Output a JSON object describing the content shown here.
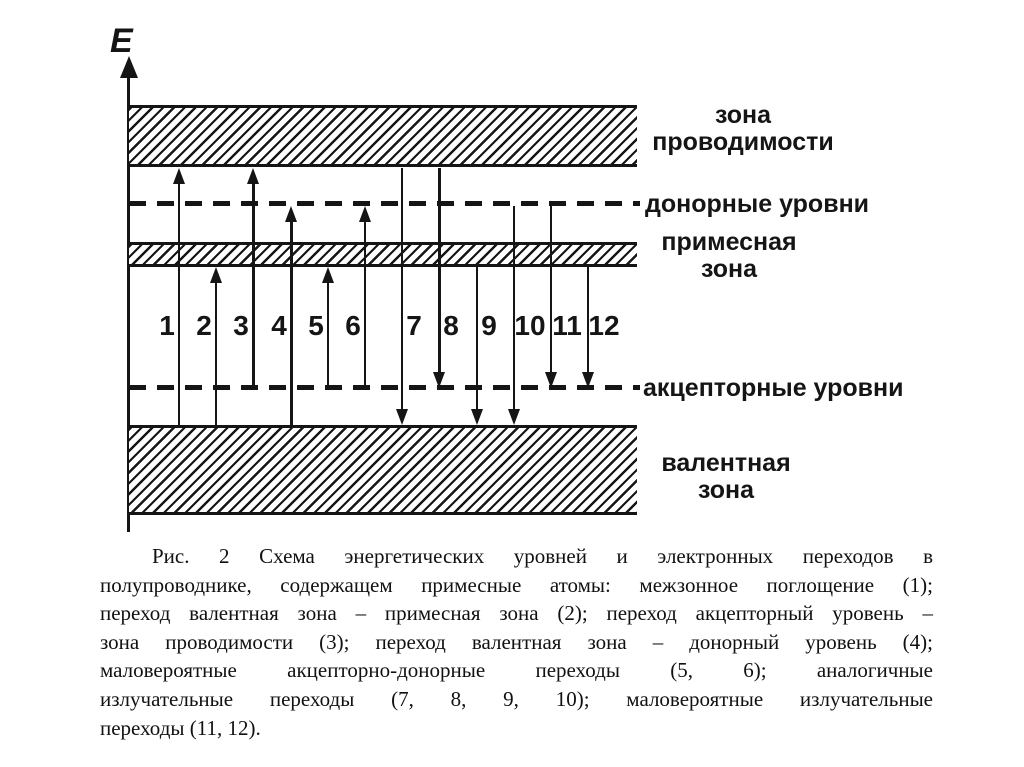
{
  "figure": {
    "axis_label": "E",
    "bands": [
      {
        "id": "conduction",
        "label_lines": [
          "зона",
          "проводимости"
        ]
      },
      {
        "id": "impurity",
        "label_lines": [
          "примесная",
          "зона"
        ]
      },
      {
        "id": "valence",
        "label_lines": [
          "валентная",
          "зона"
        ]
      }
    ],
    "levels": [
      {
        "id": "donor",
        "label": "донорные уровни"
      },
      {
        "id": "acceptor",
        "label": "акцепторные уровни"
      }
    ],
    "transitions": [
      {
        "n": "1",
        "from": "valence",
        "to": "conduction",
        "direction": "up"
      },
      {
        "n": "2",
        "from": "valence",
        "to": "impurity",
        "direction": "up"
      },
      {
        "n": "3",
        "from": "acceptor",
        "to": "conduction",
        "direction": "up"
      },
      {
        "n": "4",
        "from": "valence",
        "to": "donor",
        "direction": "up"
      },
      {
        "n": "5",
        "from": "acceptor",
        "to": "impurity",
        "direction": "up"
      },
      {
        "n": "6",
        "from": "acceptor",
        "to": "donor",
        "direction": "up"
      },
      {
        "n": "7",
        "from": "conduction",
        "to": "valence",
        "direction": "down"
      },
      {
        "n": "8",
        "from": "conduction",
        "to": "acceptor",
        "direction": "down"
      },
      {
        "n": "9",
        "from": "impurity",
        "to": "valence",
        "direction": "down"
      },
      {
        "n": "10",
        "from": "donor",
        "to": "valence",
        "direction": "down"
      },
      {
        "n": "11",
        "from": "donor",
        "to": "acceptor",
        "direction": "down"
      },
      {
        "n": "12",
        "from": "impurity",
        "to": "acceptor",
        "direction": "down"
      }
    ]
  },
  "caption": {
    "lines": [
      "Рис. 2 Схема энергетических уровней и электронных переходов в",
      "полупроводнике, содержащем примесные атомы: межзонное поглощение (1);",
      "переход валентная зона – примесная зона (2); переход акцепторный уровень –",
      "зона проводимости (3); переход валентная зона – донорный уровень (4);",
      "маловероятные акцепторно-донорные переходы (5, 6); аналогичные",
      "излучательные переходы (7, 8, 9, 10); маловероятные излучательные",
      "переходы (11, 12)."
    ]
  },
  "colors": {
    "ink": "#151515",
    "background": "#ffffff"
  }
}
